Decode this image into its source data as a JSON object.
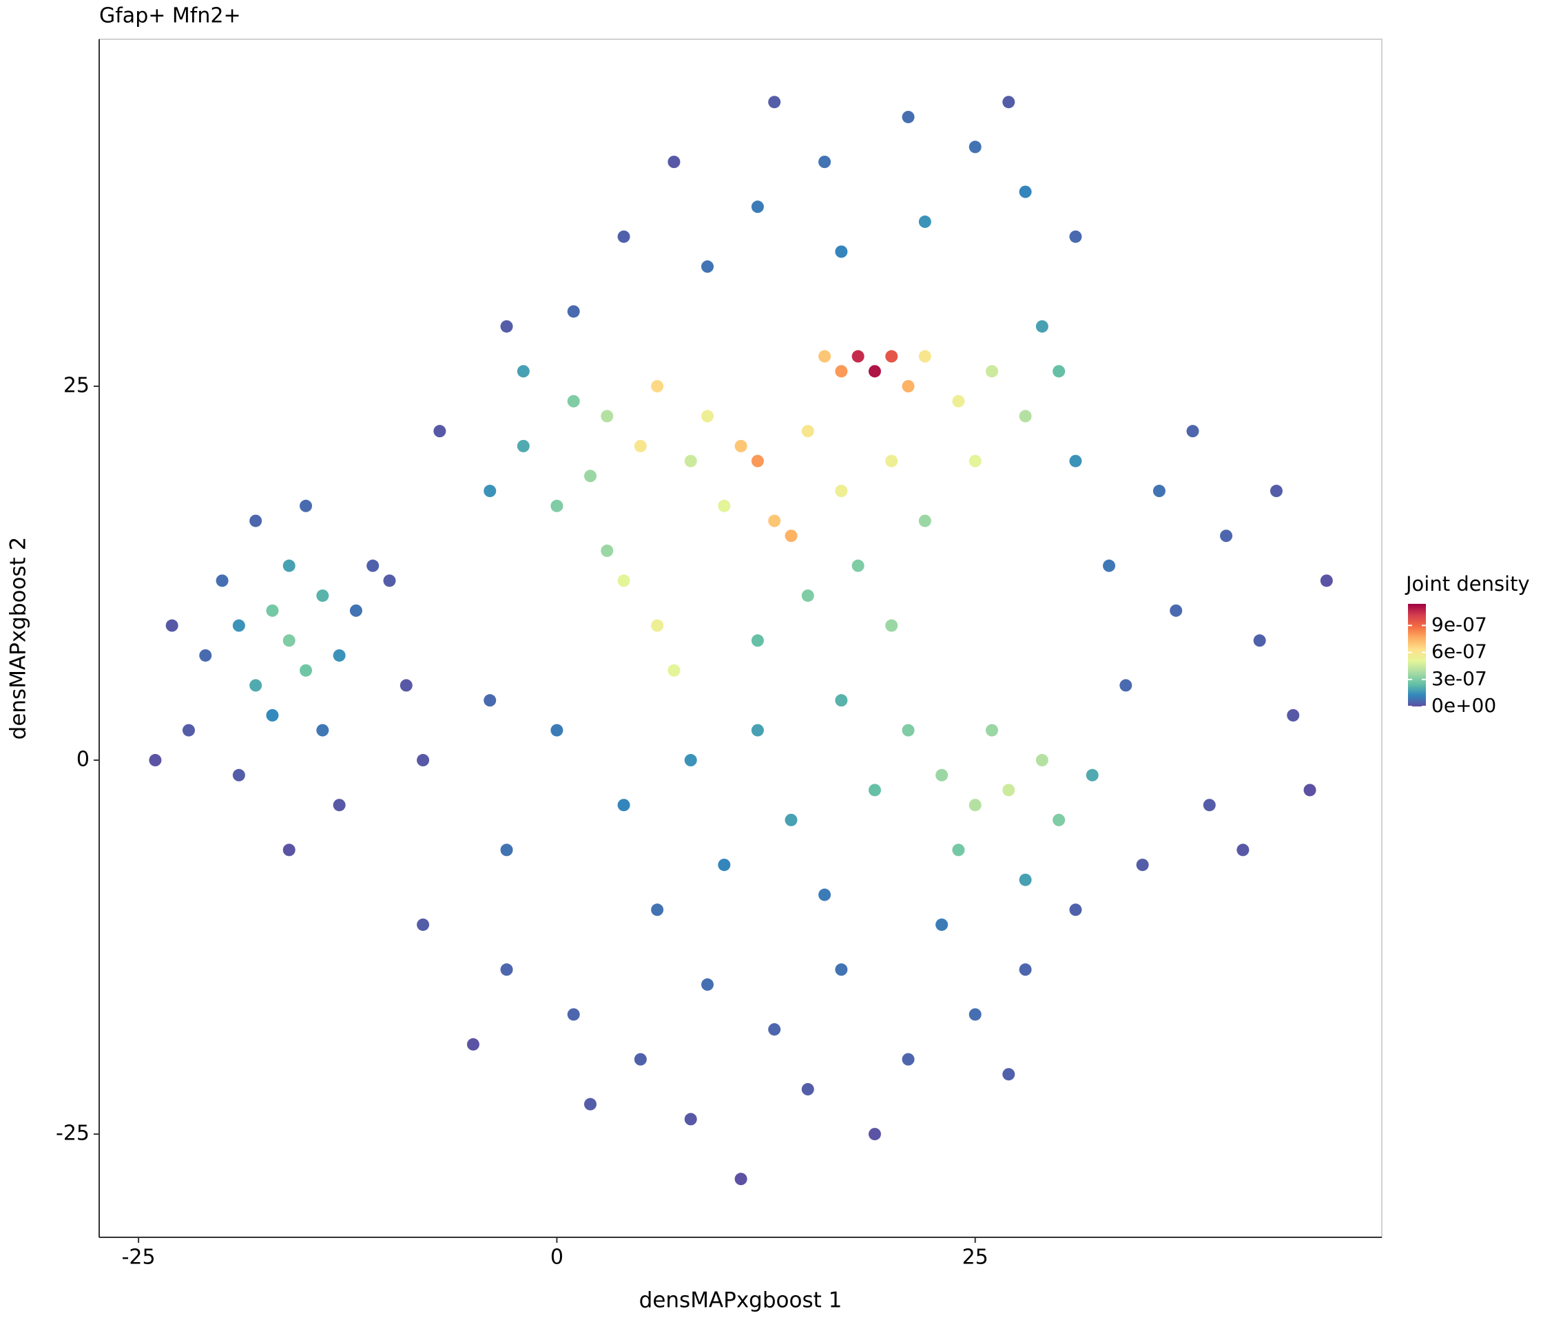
{
  "chart_data": {
    "type": "scatter",
    "title": "Gfap+ Mfn2+",
    "x_label": "densMAPxgboost 1",
    "y_label": "densMAPxgboost 2",
    "xlim": [
      -27.35,
      49.3
    ],
    "ylim": [
      -31.9,
      48.2
    ],
    "xticks": [
      -25,
      0,
      25
    ],
    "yticks": [
      -25,
      0,
      25
    ],
    "grid": false,
    "legend_title": "Joint density",
    "colorlim": [
      0,
      1.14e-06
    ],
    "colorticks": [
      {
        "value": 0,
        "label": "0e+00"
      },
      {
        "value": 3e-07,
        "label": "3e-07"
      },
      {
        "value": 6e-07,
        "label": "6e-07"
      },
      {
        "value": 9e-07,
        "label": "9e-07"
      }
    ],
    "colorscale": [
      "#5e4fa2",
      "#3288bd",
      "#66c2a5",
      "#abdda4",
      "#e6f598",
      "#fee08b",
      "#fdae61",
      "#f46d43",
      "#d53e4f",
      "#9e0142"
    ],
    "series": [
      {
        "x": [
          -16,
          -17,
          -15,
          -18,
          -14,
          -19,
          -13,
          -16,
          -17,
          -21,
          -20,
          -12,
          -14,
          -22,
          -18,
          -15,
          -11,
          -24,
          -19,
          -13,
          -16,
          -9,
          -8,
          -10,
          -23,
          19,
          18,
          20,
          17,
          21,
          16,
          22,
          6,
          5,
          12,
          11,
          14,
          13,
          20,
          15,
          9,
          24,
          26,
          28,
          25,
          17,
          10,
          8,
          3,
          2,
          4,
          6,
          7,
          3,
          0,
          1,
          -2,
          -4,
          -2,
          30,
          31,
          29,
          22,
          18,
          15,
          12,
          20,
          12,
          16,
          21,
          25,
          28,
          22,
          17,
          9,
          4,
          13,
          27,
          31,
          7,
          1,
          -3,
          -7,
          27,
          25,
          29,
          23,
          26,
          30,
          21,
          24,
          19,
          32,
          17,
          28,
          12,
          8,
          4,
          0,
          -3,
          -4,
          14,
          10,
          16,
          6,
          -8,
          -3,
          1,
          5,
          9,
          13,
          17,
          21,
          25,
          28,
          23,
          31,
          2,
          8,
          15,
          19,
          -5,
          11,
          27,
          34,
          37,
          40,
          36,
          42,
          44,
          39,
          35,
          43,
          46,
          41,
          38,
          45,
          33
        ],
        "values": [
          8,
          10,
          6,
          5,
          11,
          9,
          7,
          13,
          3,
          7,
          12,
          10,
          2,
          2,
          16,
          17,
          13,
          0,
          -1,
          -3,
          -6,
          5,
          0,
          12,
          9,
          26,
          27,
          27,
          26,
          25,
          27,
          27,
          25,
          21,
          20,
          21,
          15,
          16,
          20,
          22,
          23,
          24,
          26,
          23,
          20,
          18,
          17,
          20,
          23,
          19,
          12,
          9,
          6,
          14,
          17,
          24,
          21,
          18,
          26,
          26,
          20,
          29,
          16,
          13,
          11,
          8,
          9,
          37,
          40,
          43,
          41,
          38,
          36,
          34,
          33,
          35,
          44,
          44,
          35,
          40,
          30,
          29,
          22,
          -2,
          -3,
          0,
          -1,
          2,
          -4,
          2,
          -6,
          -2,
          -1,
          4,
          -8,
          2,
          0,
          -3,
          2,
          -6,
          4,
          -4,
          -7,
          -9,
          -10,
          -11,
          -14,
          -17,
          -20,
          -15,
          -18,
          -14,
          -20,
          -17,
          -14,
          -11,
          -10,
          -23,
          -24,
          -22,
          -25,
          -19,
          -28,
          -21,
          5,
          10,
          15,
          18,
          8,
          3,
          -3,
          -7,
          18,
          12,
          -6,
          22,
          -2,
          13
        ],
        "density": [
          3e-07,
          2.8e-07,
          2.7e-07,
          2e-07,
          2.2e-07,
          1.5e-07,
          1.5e-07,
          1.8e-07,
          1.3e-07,
          6e-08,
          7e-08,
          8e-08,
          9e-08,
          3e-08,
          5e-08,
          6e-08,
          4e-08,
          1e-08,
          3e-08,
          2e-08,
          1e-08,
          2e-08,
          2e-08,
          3e-08,
          2e-08,
          1.1e-06,
          1.05e-06,
          9.5e-07,
          8e-07,
          7.5e-07,
          7e-07,
          6e-07,
          6.5e-07,
          6e-07,
          8e-07,
          7e-07,
          7.5e-07,
          7e-07,
          5.5e-07,
          6e-07,
          5.5e-07,
          5.5e-07,
          4.5e-07,
          4e-07,
          5e-07,
          5.5e-07,
          5e-07,
          4.5e-07,
          4e-07,
          3.5e-07,
          5e-07,
          5.5e-07,
          5e-07,
          3.5e-07,
          3e-07,
          3e-07,
          2e-07,
          1.5e-07,
          1.8e-07,
          2.5e-07,
          1.5e-07,
          1.8e-07,
          3.5e-07,
          3e-07,
          3e-07,
          2.5e-07,
          3.5e-07,
          1e-07,
          8e-08,
          7e-08,
          8e-08,
          1.2e-07,
          1.5e-07,
          1.2e-07,
          8e-08,
          4e-08,
          3e-08,
          3e-08,
          6e-08,
          2e-08,
          6e-08,
          3e-08,
          2e-08,
          4.5e-07,
          4e-07,
          4e-07,
          3.5e-07,
          3.5e-07,
          3e-07,
          3e-07,
          2.8e-07,
          2.5e-07,
          2e-07,
          2.2e-07,
          1.8e-07,
          1.8e-07,
          1.5e-07,
          1.2e-07,
          1e-07,
          8e-08,
          6e-08,
          1.8e-07,
          1.2e-07,
          1e-07,
          8e-08,
          3e-08,
          5e-08,
          5e-08,
          4e-08,
          7e-08,
          5e-08,
          8e-08,
          5e-08,
          7e-08,
          5e-08,
          1e-07,
          4e-08,
          3e-08,
          2e-08,
          3e-08,
          1e-08,
          1e-08,
          5e-09,
          4e-08,
          6e-08,
          6e-08,
          5e-08,
          8e-08,
          4e-08,
          2e-08,
          3e-08,
          3e-08,
          3e-08,
          1e-08,
          2e-08,
          5e-08,
          5e-09,
          9e-08
        ]
      }
    ]
  }
}
